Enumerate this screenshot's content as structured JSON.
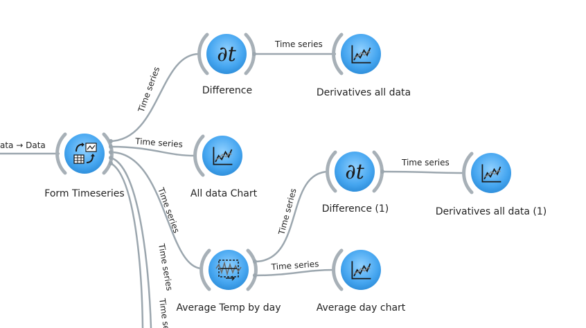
{
  "links": {
    "file_to_form": "ata → Data",
    "form_to_diff": "Time series",
    "diff_to_deriv": "Time series",
    "form_to_allchart": "Time series",
    "form_to_avgtemp": "Time series",
    "form_to_offscreen1": "Time series",
    "form_to_offscreen2": "Time se",
    "avgtemp_to_diff1": "Time series",
    "diff1_to_deriv1": "Time series",
    "avgtemp_to_avgchart": "Time series"
  },
  "nodes": {
    "form_timeseries": "Form Timeseries",
    "difference": "Difference",
    "derivatives_all_data": "Derivatives all data",
    "all_data_chart": "All data Chart",
    "difference_1": "Difference (1)",
    "derivatives_all_data_1": "Derivatives all data (1)",
    "average_temp_by_day": "Average Temp by day",
    "average_day_chart": "Average day chart"
  },
  "icons": {
    "form_timeseries": "form-timeseries-icon",
    "difference": "derivative-icon",
    "derivatives_all_data": "line-chart-icon",
    "all_data_chart": "line-chart-icon",
    "difference_1": "derivative-icon",
    "derivatives_all_data_1": "line-chart-icon",
    "average_temp_by_day": "moving-average-icon",
    "average_day_chart": "line-chart-icon"
  },
  "colors": {
    "node_fill": "#4aa8f0",
    "node_ring": "#a7b0b7",
    "link": "#9ba6ae"
  }
}
